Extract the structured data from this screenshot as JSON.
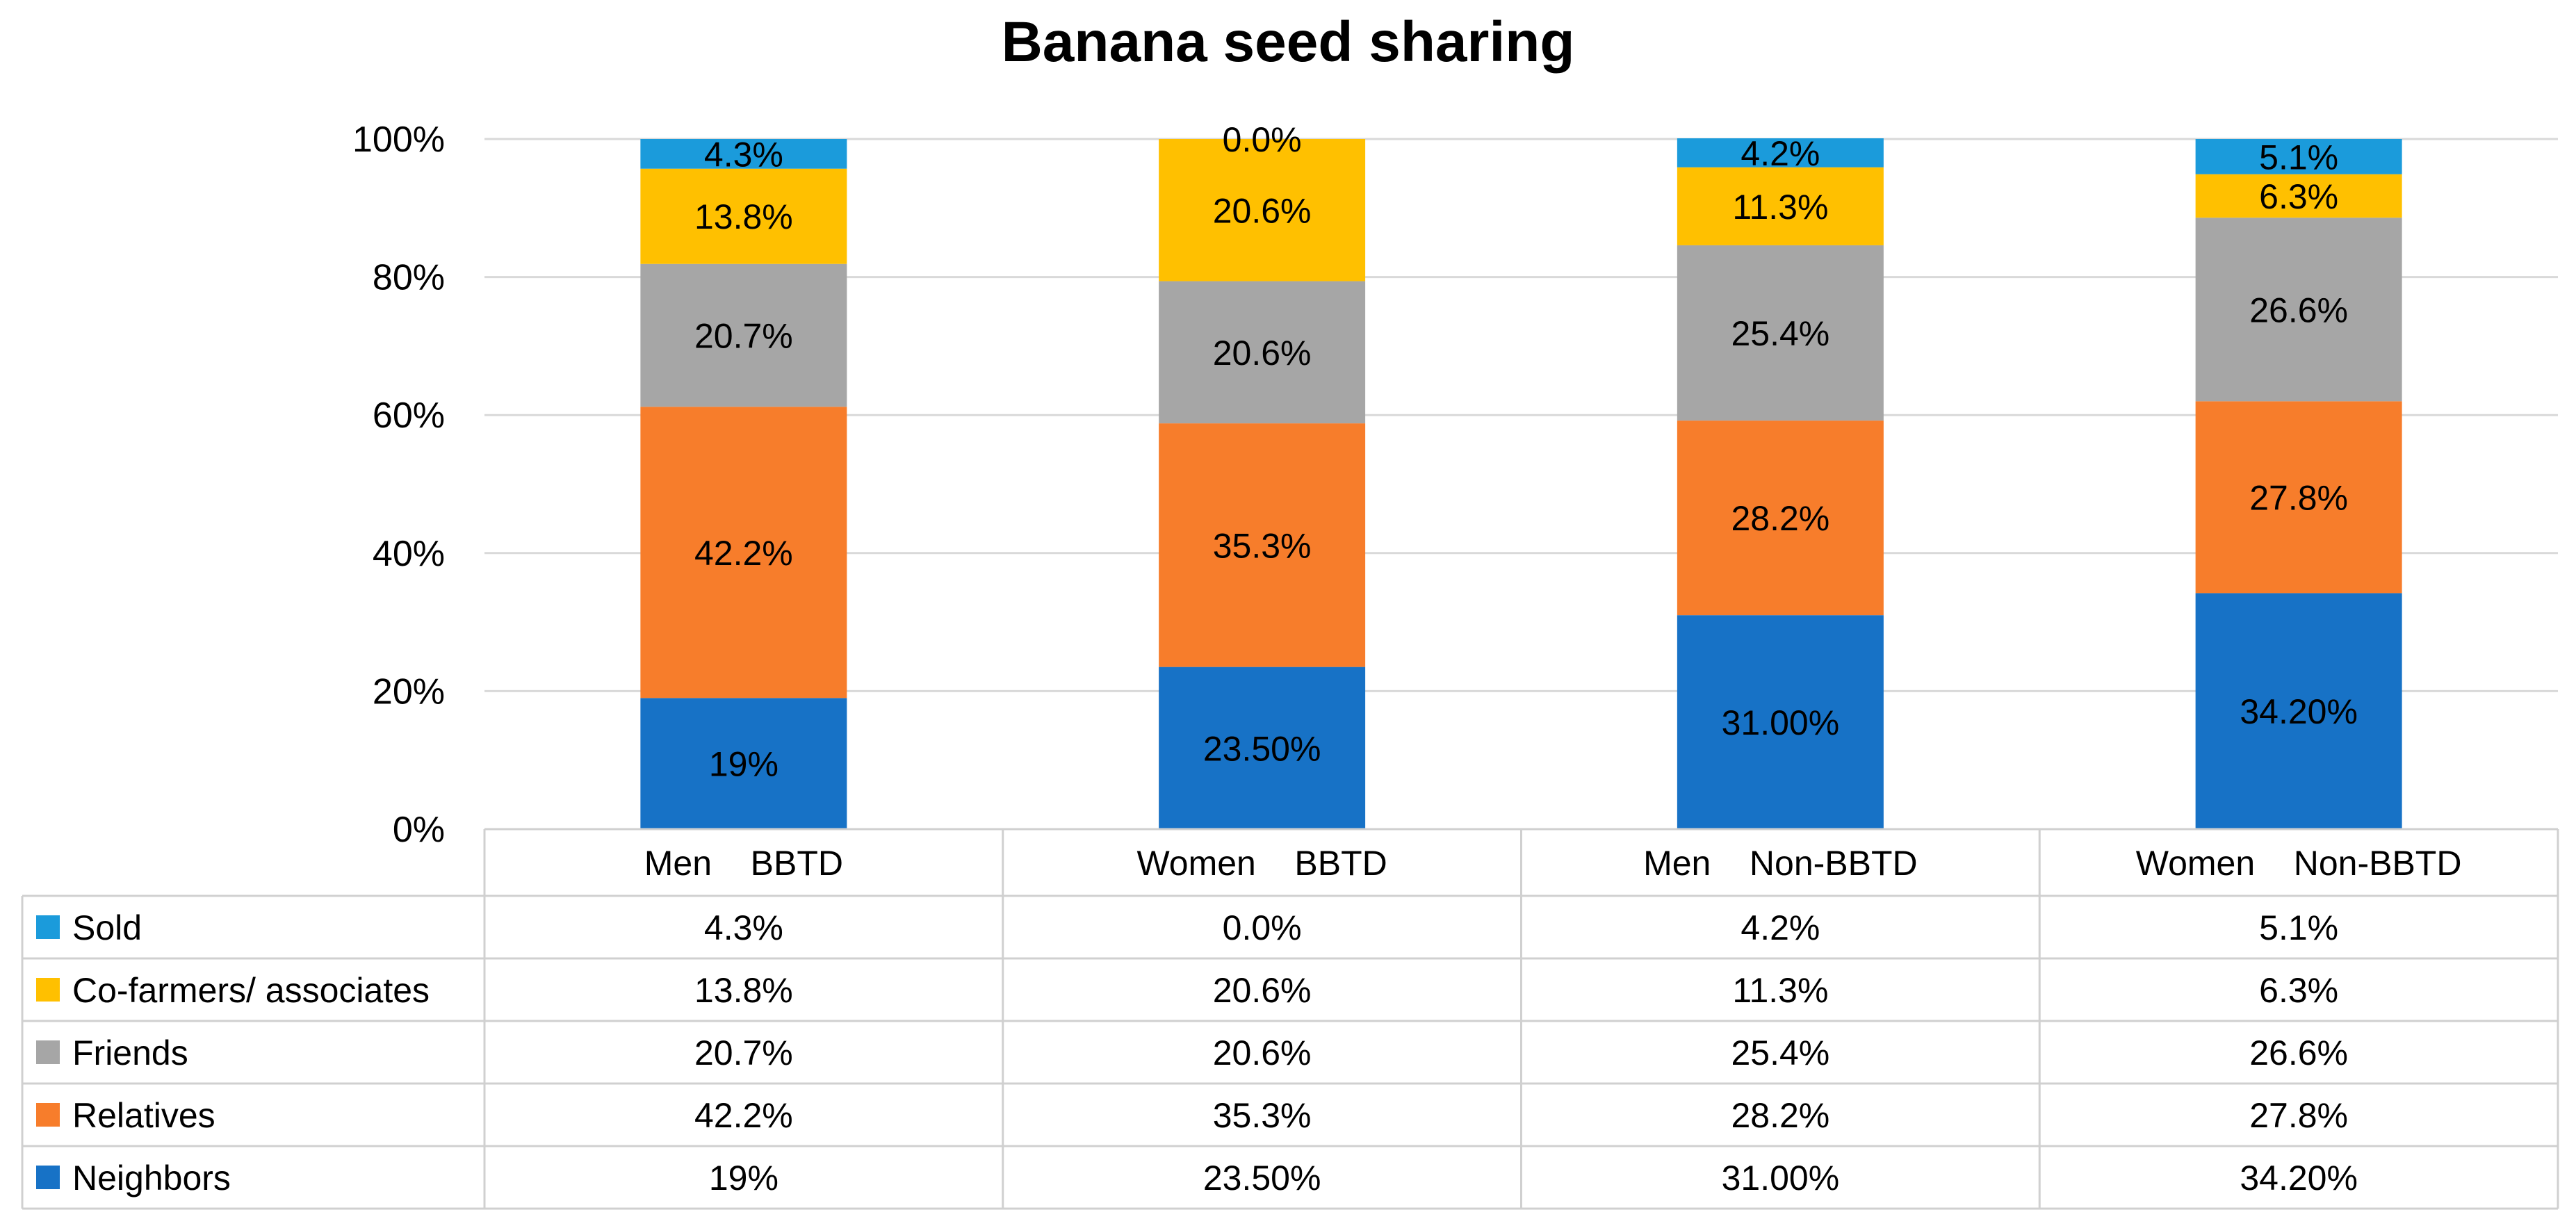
{
  "chart_data": {
    "type": "stacked-bar-with-table",
    "title": "Banana seed sharing",
    "categories": [
      "Men    BBTD",
      "Women    BBTD",
      "Men    Non-BBTD",
      "Women    Non-BBTD"
    ],
    "ylim": [
      0,
      100
    ],
    "yticks": [
      0,
      20,
      40,
      60,
      80,
      100
    ],
    "ytick_labels": [
      "0%",
      "20%",
      "40%",
      "60%",
      "80%",
      "100%"
    ],
    "grid": true,
    "series": [
      {
        "name": "Neighbors",
        "color": "#1772C6",
        "values": [
          19,
          23.5,
          31.0,
          34.2
        ],
        "labels": [
          "19%",
          "23.50%",
          "31.00%",
          "34.20%"
        ]
      },
      {
        "name": "Relatives",
        "color": "#F77D2B",
        "values": [
          42.2,
          35.3,
          28.2,
          27.8
        ],
        "labels": [
          "42.2%",
          "35.3%",
          "28.2%",
          "27.8%"
        ]
      },
      {
        "name": "Friends",
        "color": "#A6A6A6",
        "values": [
          20.7,
          20.6,
          25.4,
          26.6
        ],
        "labels": [
          "20.7%",
          "20.6%",
          "25.4%",
          "26.6%"
        ]
      },
      {
        "name": "Co-farmers/ associates",
        "color": "#FFC000",
        "values": [
          13.8,
          20.6,
          11.3,
          6.3
        ],
        "labels": [
          "13.8%",
          "20.6%",
          "11.3%",
          "6.3%"
        ]
      },
      {
        "name": "Sold",
        "color": "#1B9BDB",
        "values": [
          4.3,
          0.0,
          4.2,
          5.1
        ],
        "labels": [
          "4.3%",
          "0.0%",
          "4.2%",
          "5.1%"
        ]
      }
    ],
    "table_row_order": [
      "Sold",
      "Co-farmers/ associates",
      "Friends",
      "Relatives",
      "Neighbors"
    ]
  }
}
